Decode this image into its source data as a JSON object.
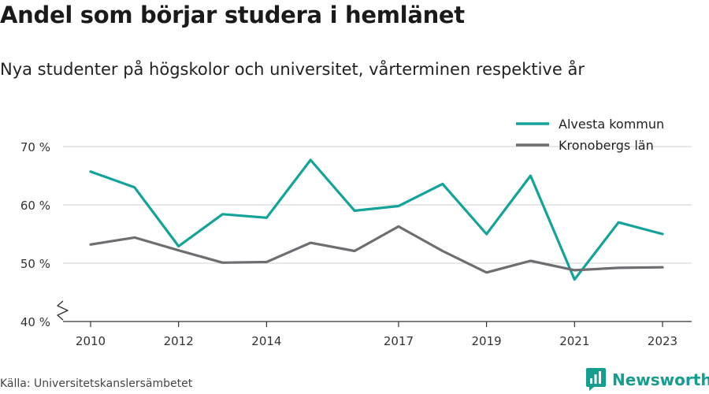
{
  "title": "Andel som börjar studera i hemlänet",
  "subtitle": "Nya studenter på högskolor och universitet, vårterminen respektive år",
  "source": "Källa: Universitetskanslersämbetet",
  "brand": "Newsworthy",
  "colors": {
    "alvesta": "#14a398",
    "kronoberg": "#6e6e72",
    "grid": "#d9d9d9",
    "axis": "#333333",
    "brand": "#159e8f"
  },
  "chart_data": {
    "type": "line",
    "x": [
      2010,
      2011,
      2012,
      2013,
      2014,
      2015,
      2016,
      2017,
      2018,
      2019,
      2020,
      2021,
      2022,
      2023
    ],
    "x_tick_labels": [
      "2010",
      "2012",
      "2014",
      "2017",
      "2019",
      "2021",
      "2023"
    ],
    "x_tick_values": [
      2010,
      2012,
      2014,
      2017,
      2019,
      2021,
      2023
    ],
    "y_tick_labels": [
      "40 %",
      "50 %",
      "60 %",
      "70 %"
    ],
    "y_tick_values": [
      40,
      50,
      60,
      70
    ],
    "ylim": [
      40,
      70
    ],
    "xlim": [
      2010,
      2023
    ],
    "grid": true,
    "legend_position": "top-right",
    "series": [
      {
        "name": "Alvesta kommun",
        "color_key": "alvesta",
        "values": [
          65.7,
          63.0,
          52.9,
          58.4,
          57.8,
          67.7,
          59.0,
          59.8,
          63.6,
          55.0,
          65.0,
          47.2,
          57.0,
          55.0
        ]
      },
      {
        "name": "Kronobergs län",
        "color_key": "kronoberg",
        "values": [
          53.2,
          54.4,
          52.2,
          50.1,
          50.2,
          53.5,
          52.1,
          56.3,
          52.1,
          48.4,
          50.4,
          48.8,
          49.2,
          49.3
        ]
      }
    ]
  }
}
